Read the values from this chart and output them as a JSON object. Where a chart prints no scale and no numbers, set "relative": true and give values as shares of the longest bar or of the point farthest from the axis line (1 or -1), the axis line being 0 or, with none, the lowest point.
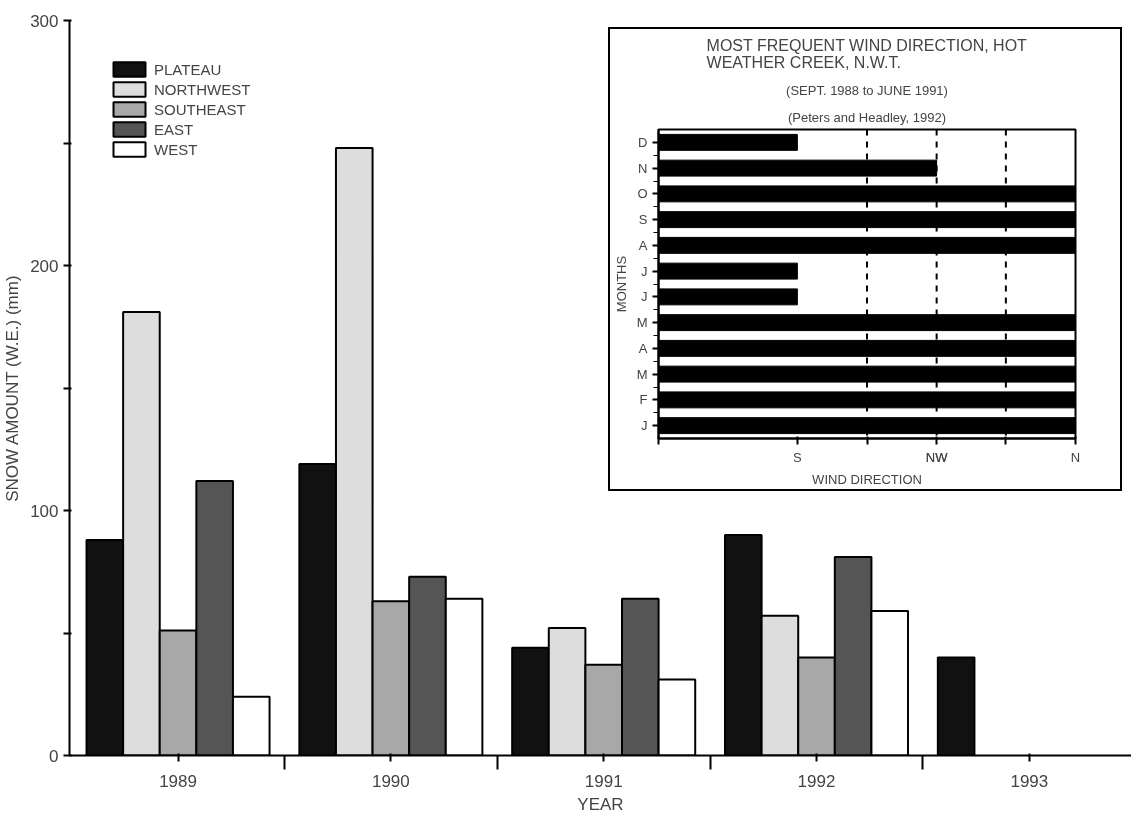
{
  "chart_data": [
    {
      "type": "bar",
      "xlabel": "YEAR",
      "ylabel": "SNOW AMOUNT (W.E.) (mm)",
      "categories": [
        "1989",
        "1990",
        "1991",
        "1992",
        "1993"
      ],
      "series": [
        {
          "name": "PLATEAU",
          "color": "#111111",
          "values": [
            88,
            119,
            44,
            90,
            40
          ]
        },
        {
          "name": "NORTHWEST",
          "color": "#dddddd",
          "values": [
            181,
            248,
            52,
            57,
            null
          ]
        },
        {
          "name": "SOUTHEAST",
          "color": "#a8a8a8",
          "values": [
            51,
            63,
            37,
            40,
            null
          ]
        },
        {
          "name": "EAST",
          "color": "#555555",
          "values": [
            112,
            73,
            64,
            81,
            null
          ]
        },
        {
          "name": "WEST",
          "color": "#ffffff",
          "values": [
            24,
            64,
            31,
            59,
            null
          ]
        }
      ],
      "ylim": [
        0,
        300
      ],
      "yticks": [
        0,
        {
          "value": 50,
          "label": null
        },
        100,
        {
          "value": 150,
          "label": null
        },
        200,
        {
          "value": 250,
          "label": null
        },
        300
      ],
      "legend": "top left",
      "grid": false
    },
    {
      "type": "bar",
      "orientation": "horizontal",
      "title": "MOST FREQUENT WIND DIRECTION, HOT\nWEATHER CREEK, N.W.T.",
      "subtitle": "(SEPT. 1988 to JUNE 1991)",
      "annotations": [
        "(Peters and Headley, 1992)",
        {
          "text": "S",
          "x": 0.333
        },
        {
          "text": "NW",
          "x": 0.667
        },
        {
          "text": "N",
          "x": 1
        }
      ],
      "xlabel": "WIND DIRECTION",
      "ylabel": "MONTHS",
      "categories": [
        "D",
        "N",
        "O",
        "S",
        "A",
        "J",
        "J",
        "M",
        "A",
        "M",
        "F",
        "J"
      ],
      "values": [
        0.333,
        0.667,
        1,
        1,
        1,
        0.333,
        0.333,
        1,
        1,
        1,
        1,
        1
      ],
      "color": "#000000",
      "relative": true,
      "ref_lines": [
        {
          "axis": "x",
          "value": 0.5,
          "line_style": "dashed",
          "color": "#000000"
        },
        {
          "axis": "x",
          "value": 0.667,
          "line_style": "dashed",
          "color": "#000000"
        },
        {
          "axis": "x",
          "value": 0.833,
          "line_style": "dashed",
          "color": "#000000"
        }
      ],
      "grid": false
    }
  ]
}
